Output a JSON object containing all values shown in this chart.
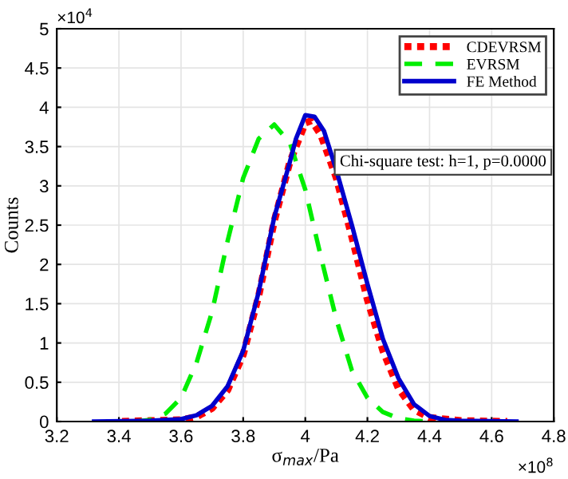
{
  "chart_data": {
    "type": "line",
    "xlabel": "σ$_{max}$/Pa",
    "ylabel": "Counts",
    "xlim": [
      3.2,
      4.8
    ],
    "xticks": [
      3.2,
      3.4,
      3.6,
      3.8,
      4,
      4.2,
      4.4,
      4.6,
      4.8
    ],
    "ylim": [
      0,
      5
    ],
    "yticks": [
      0,
      0.5,
      1,
      1.5,
      2,
      2.5,
      3,
      3.5,
      4,
      4.5,
      5
    ],
    "grid": true,
    "legend": "top right",
    "annotations": [
      "Chi-square test: h=1, p=0.0000",
      "×10$^{4}$",
      "×10$^{8}$"
    ],
    "series": [
      {
        "name": "CDEVRSM",
        "color": "#ff0000",
        "line_style": "dotted",
        "x": [
          3.41,
          3.5,
          3.6,
          3.65,
          3.7,
          3.75,
          3.8,
          3.85,
          3.9,
          3.95,
          4.0,
          4.02,
          4.05,
          4.1,
          4.15,
          4.2,
          4.25,
          4.3,
          4.35,
          4.4,
          4.5,
          4.65
        ],
        "values": [
          0,
          0.01,
          0.02,
          0.06,
          0.17,
          0.4,
          0.85,
          1.6,
          2.55,
          3.3,
          3.8,
          3.83,
          3.65,
          3.1,
          2.35,
          1.55,
          0.9,
          0.42,
          0.15,
          0.05,
          0.01,
          0
        ]
      },
      {
        "name": "EVRSM",
        "color": "#00ee00",
        "line_style": "dashed",
        "x": [
          3.45,
          3.5,
          3.55,
          3.6,
          3.65,
          3.7,
          3.75,
          3.8,
          3.85,
          3.9,
          3.95,
          4.0,
          4.05,
          4.1,
          4.15,
          4.2,
          4.25,
          4.3,
          4.35,
          4.42
        ],
        "values": [
          0,
          0.02,
          0.1,
          0.3,
          0.75,
          1.4,
          2.3,
          3.1,
          3.6,
          3.78,
          3.55,
          2.95,
          2.1,
          1.3,
          0.65,
          0.3,
          0.12,
          0.04,
          0.01,
          0
        ]
      },
      {
        "name": "FE Method",
        "color": "#0000cc",
        "line_style": "solid",
        "x": [
          3.32,
          3.5,
          3.6,
          3.65,
          3.7,
          3.75,
          3.8,
          3.85,
          3.9,
          3.95,
          3.97,
          4.0,
          4.03,
          4.06,
          4.1,
          4.15,
          4.2,
          4.25,
          4.3,
          4.35,
          4.4,
          4.45,
          4.5,
          4.68
        ],
        "values": [
          0,
          0.01,
          0.03,
          0.08,
          0.2,
          0.45,
          0.9,
          1.65,
          2.6,
          3.3,
          3.6,
          3.9,
          3.88,
          3.7,
          3.2,
          2.5,
          1.75,
          1.05,
          0.55,
          0.22,
          0.07,
          0.02,
          0.01,
          0
        ]
      }
    ]
  }
}
